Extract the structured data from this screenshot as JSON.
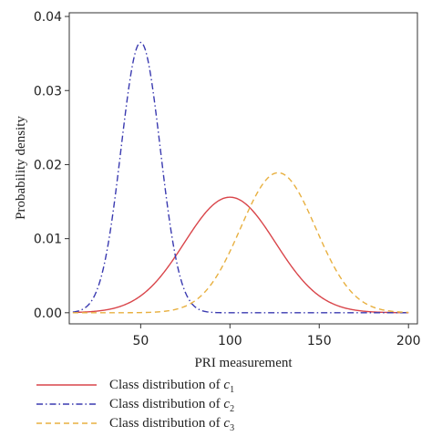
{
  "chart_data": {
    "type": "line",
    "xlabel": "PRI measurement",
    "ylabel": "Probability density",
    "xlim": [
      10,
      205
    ],
    "ylim": [
      -0.0015,
      0.0405
    ],
    "xticks": [
      50,
      100,
      150,
      200
    ],
    "yticks": [
      0.0,
      0.01,
      0.02,
      0.03,
      0.04
    ],
    "ytick_labels": [
      "0.00",
      "0.01",
      "0.02",
      "0.03",
      "0.04"
    ],
    "grid": false,
    "legend_position": "below",
    "series": [
      {
        "name": "Class distribution of c1",
        "legend_prefix": "Class distribution of ",
        "legend_symbol": "c",
        "legend_subscript": "1",
        "color": "#d9454a",
        "dash": "solid",
        "mean": 100,
        "sd": 25.5,
        "peak": 0.0156,
        "x_range": [
          12,
          200
        ]
      },
      {
        "name": "Class distribution of c2",
        "legend_prefix": "Class distribution of ",
        "legend_symbol": "c",
        "legend_subscript": "2",
        "color": "#3a3ab0",
        "dash": "dashdot",
        "mean": 50,
        "sd": 11,
        "peak": 0.0365,
        "x_range": [
          12,
          200
        ]
      },
      {
        "name": "Class distribution of c3",
        "legend_prefix": "Class distribution of ",
        "legend_symbol": "c",
        "legend_subscript": "3",
        "color": "#e8b040",
        "dash": "dashed",
        "mean": 127,
        "sd": 21,
        "peak": 0.0189,
        "x_range": [
          12,
          200
        ]
      }
    ]
  }
}
